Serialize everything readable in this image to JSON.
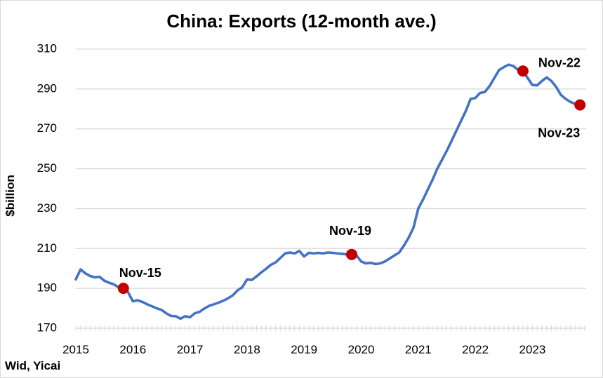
{
  "chart_data": {
    "type": "line",
    "title": "China: Exports (12-month ave.)",
    "xlabel": "",
    "ylabel": "$billion",
    "source": "Wid, Yicai",
    "ylim": [
      170,
      310
    ],
    "yticks": [
      170,
      190,
      210,
      230,
      250,
      270,
      290,
      310
    ],
    "xlim": [
      2015.0,
      2023.917
    ],
    "xticks": [
      "2015",
      "2016",
      "2017",
      "2018",
      "2019",
      "2020",
      "2021",
      "2022",
      "2023"
    ],
    "grid": "horizontal",
    "colors": {
      "line": "#4472C4",
      "marker": "#C00000",
      "grid": "#d9d9d9"
    },
    "series": [
      {
        "x": [
          "2015-01",
          "2015-02",
          "2015-03",
          "2015-04",
          "2015-05",
          "2015-06",
          "2015-07",
          "2015-08",
          "2015-09",
          "2015-10",
          "2015-11",
          "2015-12",
          "2016-01",
          "2016-02",
          "2016-03",
          "2016-04",
          "2016-05",
          "2016-06",
          "2016-07",
          "2016-08",
          "2016-09",
          "2016-10",
          "2016-11",
          "2016-12",
          "2017-01",
          "2017-02",
          "2017-03",
          "2017-04",
          "2017-05",
          "2017-06",
          "2017-07",
          "2017-08",
          "2017-09",
          "2017-10",
          "2017-11",
          "2017-12",
          "2018-01",
          "2018-02",
          "2018-03",
          "2018-04",
          "2018-05",
          "2018-06",
          "2018-07",
          "2018-08",
          "2018-09",
          "2018-10",
          "2018-11",
          "2018-12",
          "2019-01",
          "2019-02",
          "2019-03",
          "2019-04",
          "2019-05",
          "2019-06",
          "2019-07",
          "2019-08",
          "2019-09",
          "2019-10",
          "2019-11",
          "2019-12",
          "2020-01",
          "2020-02",
          "2020-03",
          "2020-04",
          "2020-05",
          "2020-06",
          "2020-07",
          "2020-08",
          "2020-09",
          "2020-10",
          "2020-11",
          "2020-12",
          "2021-01",
          "2021-02",
          "2021-03",
          "2021-04",
          "2021-05",
          "2021-06",
          "2021-07",
          "2021-08",
          "2021-09",
          "2021-10",
          "2021-11",
          "2021-12",
          "2022-01",
          "2022-02",
          "2022-03",
          "2022-04",
          "2022-05",
          "2022-06",
          "2022-07",
          "2022-08",
          "2022-09",
          "2022-10",
          "2022-11",
          "2022-12",
          "2023-01",
          "2023-02",
          "2023-03",
          "2023-04",
          "2023-05",
          "2023-06",
          "2023-07",
          "2023-08",
          "2023-09",
          "2023-10",
          "2023-11"
        ],
        "values": [
          194.5,
          199.5,
          197.5,
          196.2,
          195.5,
          195.8,
          193.8,
          192.8,
          192.0,
          190.5,
          190.0,
          188.0,
          183.5,
          184.0,
          183.2,
          182.0,
          181.0,
          180.0,
          179.2,
          177.5,
          176.2,
          176.0,
          174.8,
          176.0,
          175.5,
          177.5,
          178.2,
          179.8,
          181.2,
          182.0,
          182.8,
          183.8,
          185.0,
          186.5,
          189.0,
          190.5,
          194.5,
          194.2,
          196.0,
          198.0,
          199.8,
          201.8,
          203.0,
          205.2,
          207.5,
          208.0,
          207.5,
          208.8,
          206.0,
          207.8,
          207.5,
          207.8,
          207.5,
          208.0,
          207.8,
          207.5,
          207.3,
          207.0,
          207.0,
          206.5,
          203.5,
          202.5,
          202.8,
          202.2,
          202.5,
          203.5,
          205.0,
          206.5,
          208.0,
          211.5,
          215.5,
          220.5,
          230.0,
          234.5,
          239.5,
          244.5,
          250.0,
          254.5,
          259.0,
          264.0,
          269.0,
          274.0,
          279.0,
          285.0,
          285.5,
          288.0,
          288.5,
          291.5,
          295.5,
          299.5,
          301.0,
          302.2,
          301.5,
          299.5,
          299.0,
          295.5,
          292.0,
          291.8,
          294.0,
          295.8,
          294.0,
          291.0,
          287.0,
          285.0,
          283.5,
          282.5,
          282.0
        ]
      }
    ],
    "markers": [
      {
        "x": "2015-11",
        "y": 190.0
      },
      {
        "x": "2019-11",
        "y": 207.0
      },
      {
        "x": "2022-11",
        "y": 299.0
      },
      {
        "x": "2023-11",
        "y": 282.0
      }
    ],
    "annotations": [
      {
        "text": "Nov-15",
        "near": "2015-11",
        "place": "above-right"
      },
      {
        "text": "Nov-19",
        "near": "2019-11",
        "place": "above"
      },
      {
        "text": "Nov-22",
        "near": "2022-11",
        "place": "right"
      },
      {
        "text": "Nov-23",
        "near": "2023-11",
        "place": "below-left"
      }
    ]
  }
}
